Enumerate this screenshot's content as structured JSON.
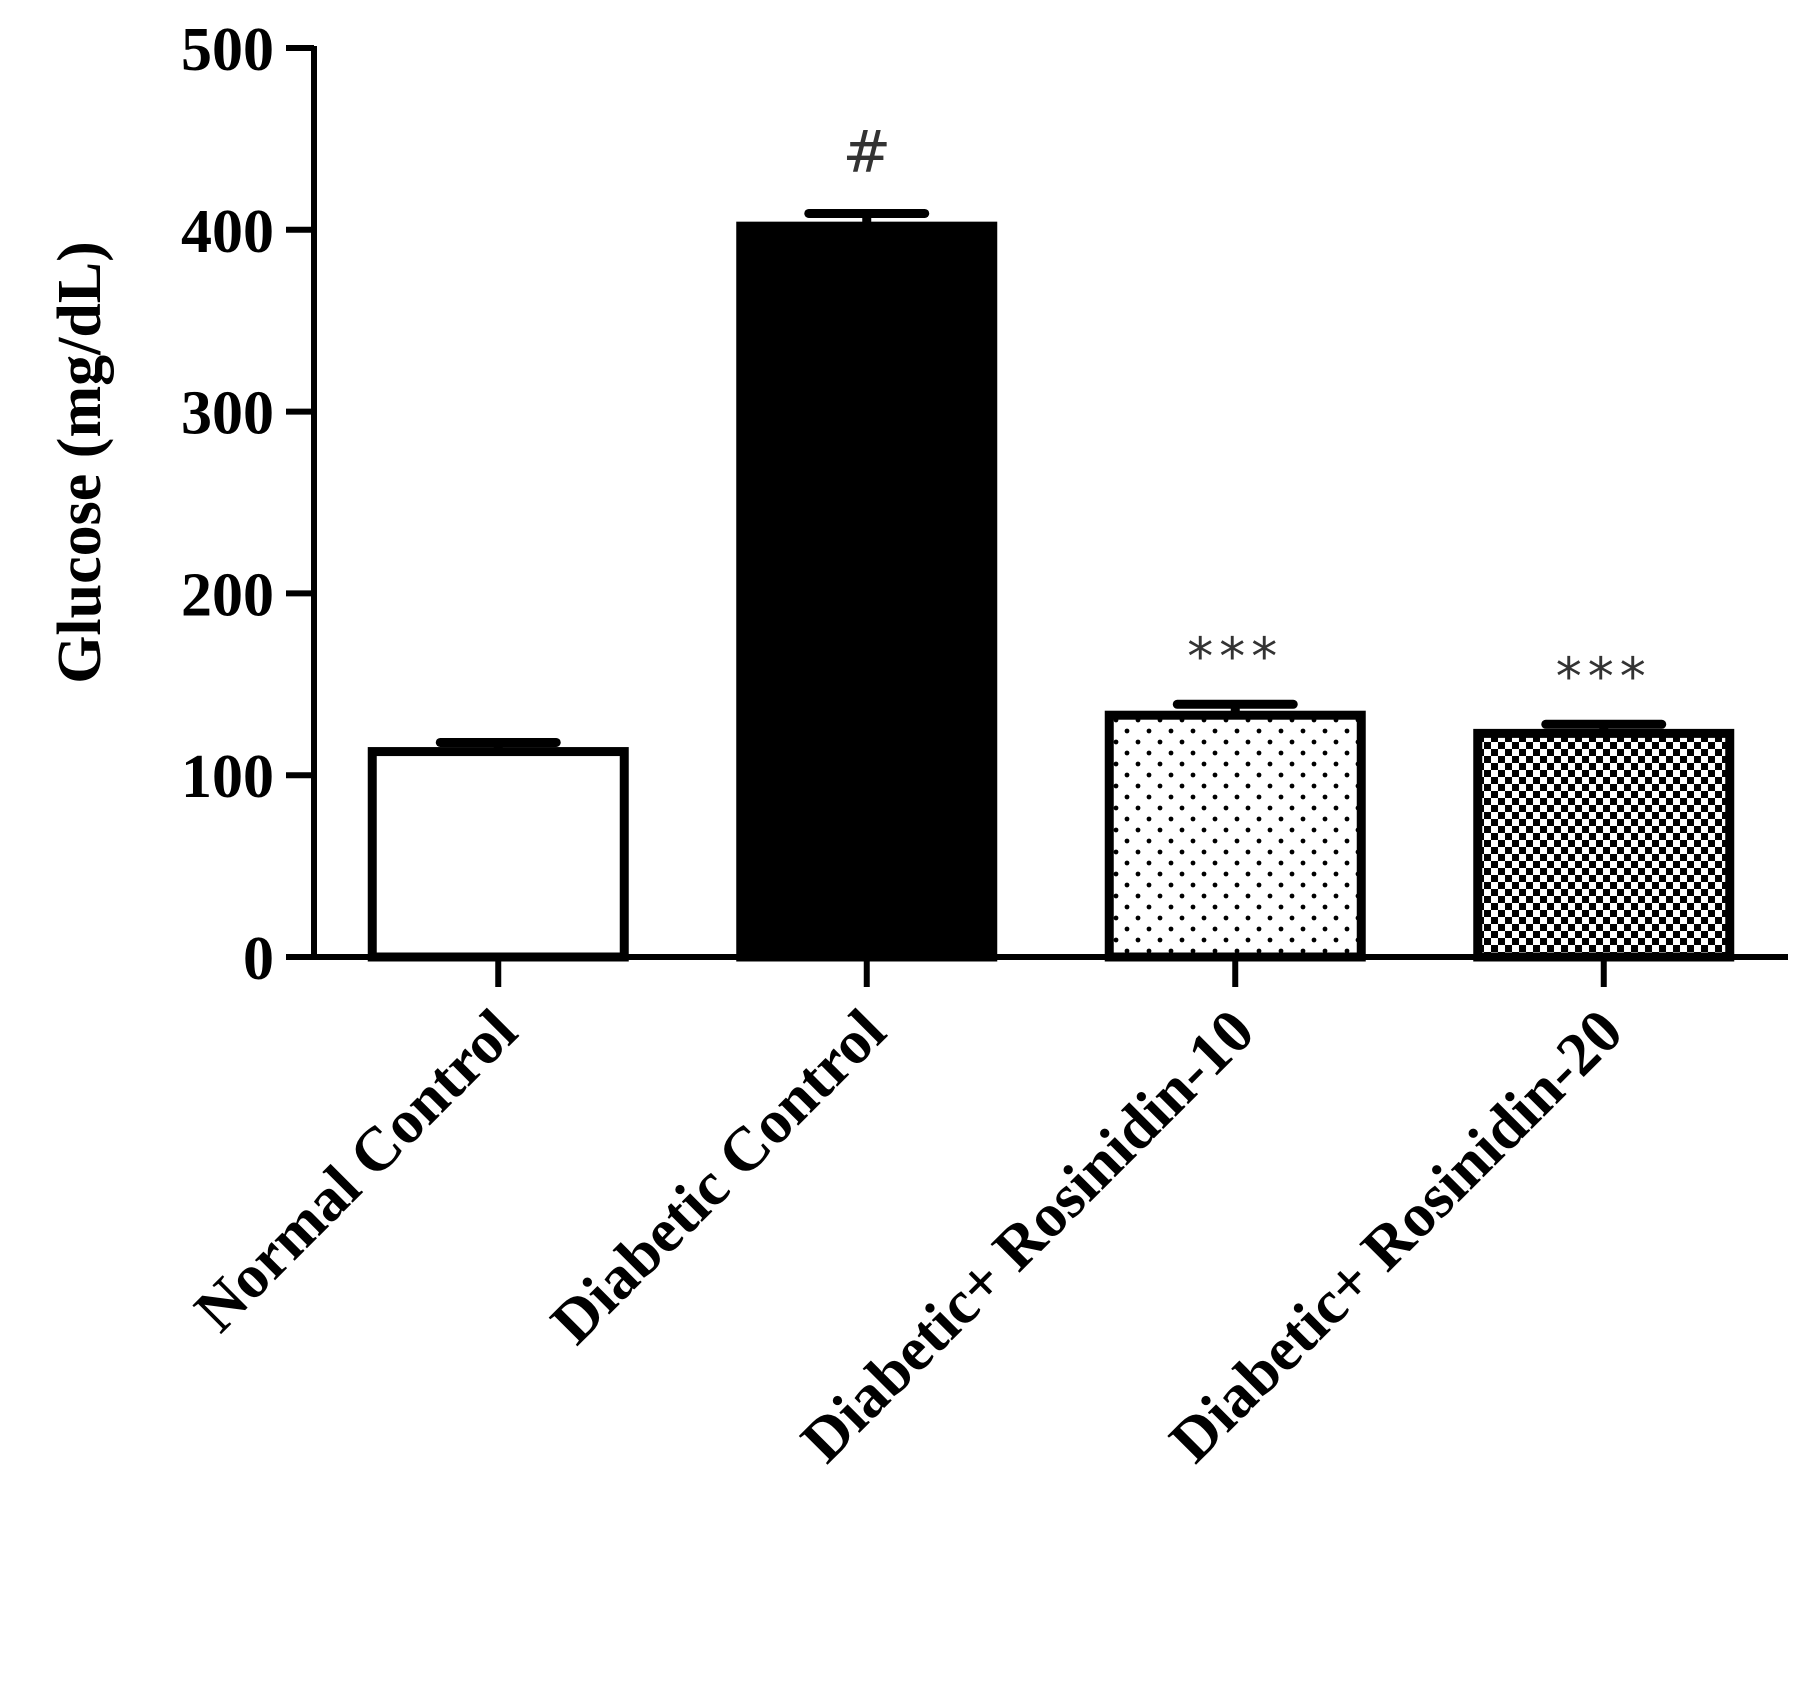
{
  "chart_data": {
    "type": "bar",
    "title": "",
    "xlabel": "",
    "ylabel": "Glucose (mg/dL)",
    "ylim": [
      0,
      500
    ],
    "yticks": [
      0,
      100,
      200,
      300,
      400,
      500
    ],
    "ytick_labels": [
      "0",
      "100",
      "200",
      "300",
      "400",
      "500"
    ],
    "grid": false,
    "legend": "none",
    "categories": [
      "Normal Control",
      "Diabetic Control",
      "Diabetic+ Rosinidin-10",
      "Diabetic+ Rosinidin-20"
    ],
    "values": [
      113,
      402,
      133,
      123
    ],
    "errors": [
      5,
      7,
      6,
      5
    ],
    "annotations": [
      "",
      "#",
      "***",
      "***"
    ],
    "fills": [
      "white",
      "solid-black",
      "sparse-dots",
      "dense-checker"
    ],
    "colors": {
      "ink": "#000000",
      "annotation": "#333333",
      "background": "#ffffff"
    }
  }
}
